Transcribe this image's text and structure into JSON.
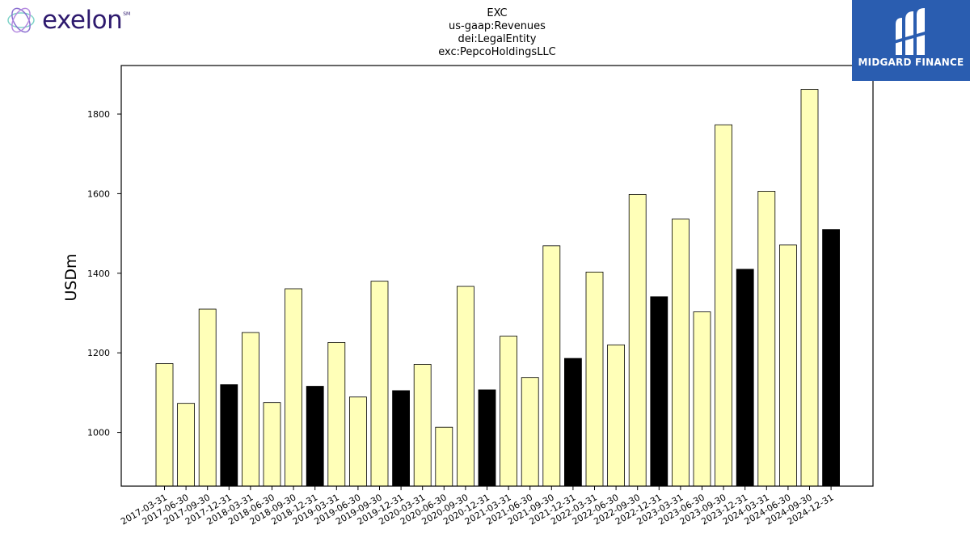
{
  "logos": {
    "left_text": "exelon",
    "left_mark": "SM",
    "right_text": "MIDGARD FINANCE"
  },
  "chart_data": {
    "type": "bar",
    "title_lines": [
      "EXC",
      "us-gaap:Revenues",
      "dei:LegalEntity",
      "exc:PepcoHoldingsLLC"
    ],
    "ylabel": "USDm",
    "xlabel": "",
    "ylim": [
      865,
      1922
    ],
    "yticks": [
      1000,
      1200,
      1400,
      1600,
      1800
    ],
    "categories": [
      "2017-03-31",
      "2017-06-30",
      "2017-09-30",
      "2017-12-31",
      "2018-03-31",
      "2018-06-30",
      "2018-09-30",
      "2018-12-31",
      "2019-03-31",
      "2019-06-30",
      "2019-09-30",
      "2019-12-31",
      "2020-03-31",
      "2020-06-30",
      "2020-09-30",
      "2020-12-31",
      "2021-03-31",
      "2021-06-30",
      "2021-09-30",
      "2021-12-31",
      "2022-03-31",
      "2022-06-30",
      "2022-09-30",
      "2022-12-31",
      "2023-03-31",
      "2023-06-30",
      "2023-09-30",
      "2023-12-31",
      "2024-03-31",
      "2024-06-30",
      "2024-09-30",
      "2024-12-31"
    ],
    "values": [
      1173,
      1073,
      1310,
      1120,
      1251,
      1075,
      1361,
      1116,
      1226,
      1089,
      1380,
      1105,
      1171,
      1013,
      1367,
      1107,
      1242,
      1138,
      1469,
      1186,
      1403,
      1220,
      1598,
      1341,
      1536,
      1303,
      1773,
      1410,
      1606,
      1471,
      1862,
      1510
    ],
    "colors": {
      "quarter": "#ffffb8",
      "year_end": "#000000",
      "edge": "#000000"
    },
    "grid": false
  }
}
